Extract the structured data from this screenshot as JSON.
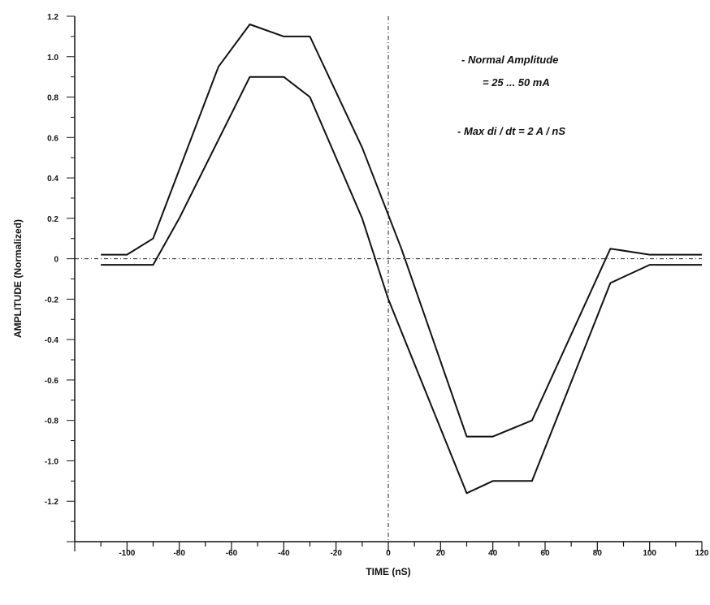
{
  "chart_data": {
    "type": "line",
    "title": "",
    "xlabel": "TIME (nS)",
    "ylabel": "AMPLITUDE (Normalized)",
    "xlim": [
      -120,
      120
    ],
    "ylim": [
      -1.4,
      1.2
    ],
    "x_ticks": [
      -100,
      -80,
      -60,
      -40,
      -20,
      0,
      20,
      40,
      60,
      80,
      100,
      120
    ],
    "x_tick_labels": [
      "-100",
      "-80",
      "-60",
      "-40",
      "-20",
      "0",
      "20",
      "40",
      "60",
      "80",
      "100",
      "120"
    ],
    "y_ticks": [
      1.2,
      1.0,
      0.8,
      0.6,
      0.4,
      0.2,
      0,
      -0.2,
      -0.4,
      -0.6,
      -0.8,
      -1.0,
      -1.2
    ],
    "y_tick_labels": [
      "1.2",
      "1.0",
      "0.8",
      "0.6",
      "0.4",
      "0.2",
      "0",
      "-0.2",
      "-0.4",
      "-0.6",
      "-0.8",
      "-1.0",
      "-1.2"
    ],
    "series": [
      {
        "x": [
          -110,
          -100,
          -90,
          -65,
          -53,
          -40,
          -30,
          -10,
          5,
          30,
          40,
          55,
          85,
          100,
          120
        ],
        "y": [
          0.02,
          0.02,
          0.1,
          0.95,
          1.16,
          1.1,
          1.1,
          0.55,
          0.05,
          -0.88,
          -0.88,
          -0.8,
          0.05,
          0.02,
          0.02
        ]
      },
      {
        "x": [
          -110,
          -90,
          -80,
          -53,
          -40,
          -30,
          -10,
          0,
          30,
          40,
          55,
          85,
          100,
          120
        ],
        "y": [
          -0.03,
          -0.03,
          0.2,
          0.9,
          0.9,
          0.8,
          0.2,
          -0.2,
          -1.16,
          -1.1,
          -1.1,
          -0.12,
          -0.03,
          -0.03
        ]
      }
    ],
    "annotations": [
      "- Normal Amplitude",
      "= 25 ... 50 mA",
      "- Max di / dt = 2 A / nS"
    ],
    "grid": false
  }
}
